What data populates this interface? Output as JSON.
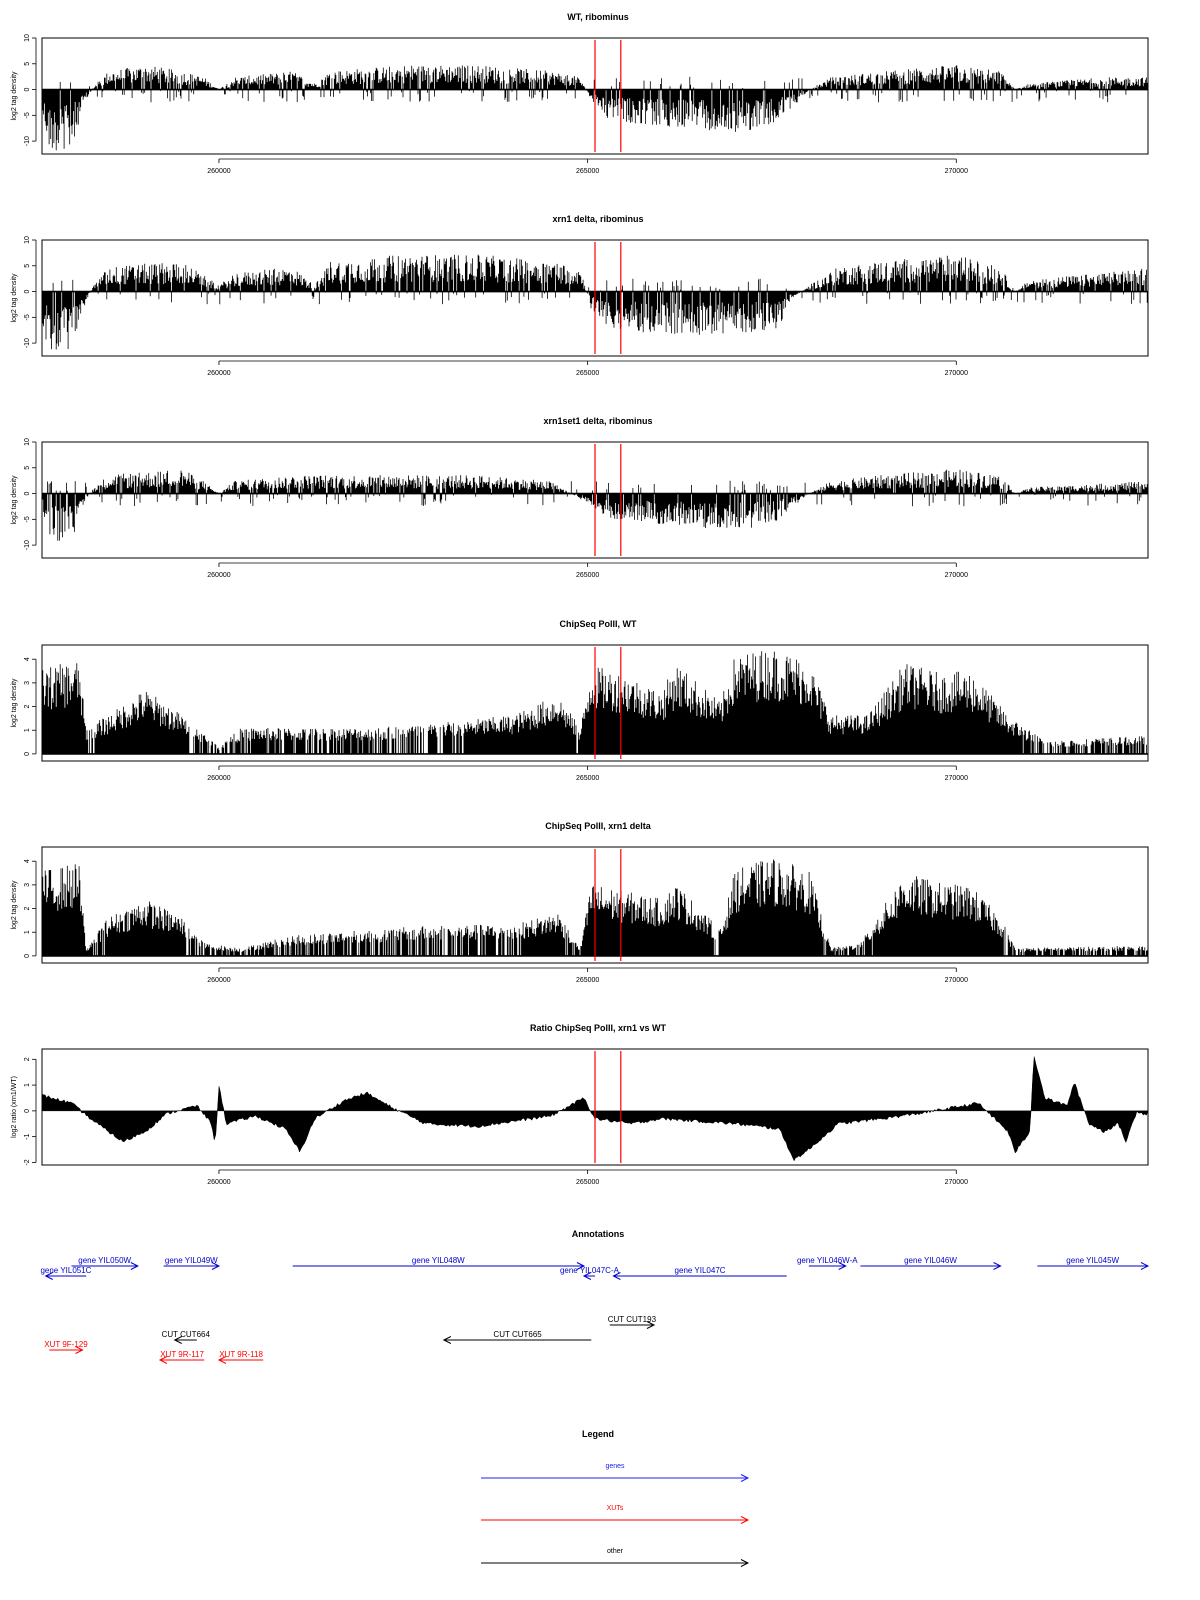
{
  "colors": {
    "signal": "#000000",
    "marker": "#ff0000",
    "gene": "#0000cc",
    "xut": "#ff0000",
    "other": "#000000",
    "legend_gene": "#2222ee"
  },
  "chart_data": [
    {
      "type": "area",
      "title": "WT, ribominus",
      "ylabel": "log2 tag density",
      "xlim": [
        257600,
        272600
      ],
      "ylim": [
        -12.5,
        10
      ],
      "yticks": [
        -10,
        -5,
        0,
        5,
        10
      ],
      "xticks": [
        260000,
        265000,
        270000
      ],
      "grid": false,
      "markers_x": [
        265100,
        265450
      ],
      "profile": [
        {
          "x": 257600,
          "y": -4
        },
        {
          "x": 257700,
          "y": -10
        },
        {
          "x": 258000,
          "y": -10
        },
        {
          "x": 258150,
          "y": -3
        },
        {
          "x": 258300,
          "y": 0.5
        },
        {
          "x": 258500,
          "y": 3
        },
        {
          "x": 259000,
          "y": 4
        },
        {
          "x": 259500,
          "y": 3
        },
        {
          "x": 259800,
          "y": 2
        },
        {
          "x": 260000,
          "y": 0
        },
        {
          "x": 260200,
          "y": 2
        },
        {
          "x": 261000,
          "y": 3
        },
        {
          "x": 261300,
          "y": 1
        },
        {
          "x": 261500,
          "y": 3
        },
        {
          "x": 262500,
          "y": 4
        },
        {
          "x": 263500,
          "y": 4
        },
        {
          "x": 264500,
          "y": 3
        },
        {
          "x": 264900,
          "y": 2
        },
        {
          "x": 265050,
          "y": -2
        },
        {
          "x": 265300,
          "y": -5
        },
        {
          "x": 266000,
          "y": -6
        },
        {
          "x": 267000,
          "y": -7
        },
        {
          "x": 267500,
          "y": -6
        },
        {
          "x": 267800,
          "y": -3
        },
        {
          "x": 268000,
          "y": 0
        },
        {
          "x": 268300,
          "y": 2
        },
        {
          "x": 269000,
          "y": 3
        },
        {
          "x": 270000,
          "y": 4
        },
        {
          "x": 270600,
          "y": 3
        },
        {
          "x": 270800,
          "y": 0
        },
        {
          "x": 271000,
          "y": 1
        },
        {
          "x": 272000,
          "y": 2
        },
        {
          "x": 272600,
          "y": 2
        }
      ]
    },
    {
      "type": "area",
      "title": "xrn1 delta, ribominus",
      "ylabel": "log2 tag density",
      "xlim": [
        257600,
        272600
      ],
      "ylim": [
        -12.5,
        10
      ],
      "yticks": [
        -10,
        -5,
        0,
        5,
        10
      ],
      "xticks": [
        260000,
        265000,
        270000
      ],
      "grid": false,
      "markers_x": [
        265100,
        265450
      ],
      "profile": [
        {
          "x": 257600,
          "y": -6
        },
        {
          "x": 257700,
          "y": -10
        },
        {
          "x": 258000,
          "y": -10
        },
        {
          "x": 258150,
          "y": -3
        },
        {
          "x": 258300,
          "y": 1
        },
        {
          "x": 258500,
          "y": 4
        },
        {
          "x": 259500,
          "y": 5
        },
        {
          "x": 260000,
          "y": 1
        },
        {
          "x": 260200,
          "y": 3
        },
        {
          "x": 261000,
          "y": 4
        },
        {
          "x": 261300,
          "y": 1
        },
        {
          "x": 261500,
          "y": 5
        },
        {
          "x": 262500,
          "y": 6
        },
        {
          "x": 263500,
          "y": 6
        },
        {
          "x": 264500,
          "y": 5
        },
        {
          "x": 264900,
          "y": 4
        },
        {
          "x": 265050,
          "y": -3
        },
        {
          "x": 265300,
          "y": -6
        },
        {
          "x": 266000,
          "y": -7
        },
        {
          "x": 267000,
          "y": -7
        },
        {
          "x": 267650,
          "y": -6
        },
        {
          "x": 267700,
          "y": -2
        },
        {
          "x": 268000,
          "y": 1
        },
        {
          "x": 268400,
          "y": 4
        },
        {
          "x": 269000,
          "y": 5
        },
        {
          "x": 270000,
          "y": 6
        },
        {
          "x": 270600,
          "y": 4
        },
        {
          "x": 270800,
          "y": 0
        },
        {
          "x": 271000,
          "y": 2
        },
        {
          "x": 272000,
          "y": 3
        },
        {
          "x": 272600,
          "y": 4
        }
      ]
    },
    {
      "type": "area",
      "title": "xrn1set1 delta, ribominus",
      "ylabel": "log2 tag density",
      "xlim": [
        257600,
        272600
      ],
      "ylim": [
        -12.5,
        10
      ],
      "yticks": [
        -10,
        -5,
        0,
        5,
        10
      ],
      "xticks": [
        260000,
        265000,
        270000
      ],
      "grid": false,
      "markers_x": [
        265100,
        265450
      ],
      "profile": [
        {
          "x": 257600,
          "y": -3
        },
        {
          "x": 257700,
          "y": -8
        },
        {
          "x": 258000,
          "y": -8
        },
        {
          "x": 258150,
          "y": -2
        },
        {
          "x": 258300,
          "y": 1
        },
        {
          "x": 258500,
          "y": 3
        },
        {
          "x": 259500,
          "y": 4
        },
        {
          "x": 259800,
          "y": 2
        },
        {
          "x": 260000,
          "y": 0
        },
        {
          "x": 260200,
          "y": 2
        },
        {
          "x": 261000,
          "y": 3
        },
        {
          "x": 262500,
          "y": 3
        },
        {
          "x": 263500,
          "y": 3
        },
        {
          "x": 264500,
          "y": 2
        },
        {
          "x": 265050,
          "y": -2
        },
        {
          "x": 265300,
          "y": -4
        },
        {
          "x": 266000,
          "y": -5
        },
        {
          "x": 267000,
          "y": -6
        },
        {
          "x": 267500,
          "y": -5
        },
        {
          "x": 267800,
          "y": -2
        },
        {
          "x": 268000,
          "y": 0
        },
        {
          "x": 268300,
          "y": 2
        },
        {
          "x": 269000,
          "y": 3
        },
        {
          "x": 270000,
          "y": 4
        },
        {
          "x": 270600,
          "y": 3
        },
        {
          "x": 270800,
          "y": 0
        },
        {
          "x": 271000,
          "y": 1
        },
        {
          "x": 272600,
          "y": 2
        }
      ]
    },
    {
      "type": "area",
      "title": "ChipSeq PolII, WT",
      "ylabel": "log2 tag density",
      "xlim": [
        257600,
        272600
      ],
      "ylim": [
        -0.3,
        4.6
      ],
      "yticks": [
        0,
        1,
        2,
        3,
        4
      ],
      "xticks": [
        260000,
        265000,
        270000
      ],
      "grid": false,
      "markers_x": [
        265100,
        265450
      ],
      "profile": [
        {
          "x": 257600,
          "y": 3.3
        },
        {
          "x": 258100,
          "y": 3.6
        },
        {
          "x": 258200,
          "y": 1
        },
        {
          "x": 258500,
          "y": 1.5
        },
        {
          "x": 259000,
          "y": 2.5
        },
        {
          "x": 259500,
          "y": 1.5
        },
        {
          "x": 260000,
          "y": 0.3
        },
        {
          "x": 260300,
          "y": 1
        },
        {
          "x": 262000,
          "y": 1
        },
        {
          "x": 263000,
          "y": 1.2
        },
        {
          "x": 264000,
          "y": 1.5
        },
        {
          "x": 264600,
          "y": 2.3
        },
        {
          "x": 264900,
          "y": 1
        },
        {
          "x": 265050,
          "y": 3.4
        },
        {
          "x": 265500,
          "y": 3.1
        },
        {
          "x": 266000,
          "y": 2.4
        },
        {
          "x": 266200,
          "y": 3.5
        },
        {
          "x": 266800,
          "y": 2
        },
        {
          "x": 267000,
          "y": 3.8
        },
        {
          "x": 267500,
          "y": 4.1
        },
        {
          "x": 268000,
          "y": 3.6
        },
        {
          "x": 268300,
          "y": 1.5
        },
        {
          "x": 268800,
          "y": 1.5
        },
        {
          "x": 269300,
          "y": 3.5
        },
        {
          "x": 269800,
          "y": 3.1
        },
        {
          "x": 270200,
          "y": 3.2
        },
        {
          "x": 270700,
          "y": 1.5
        },
        {
          "x": 271200,
          "y": 0.5
        },
        {
          "x": 272600,
          "y": 0.7
        }
      ]
    },
    {
      "type": "area",
      "title": "ChipSeq PolII, xrn1 delta",
      "ylabel": "log2 tag density",
      "xlim": [
        257600,
        272600
      ],
      "ylim": [
        -0.3,
        4.6
      ],
      "yticks": [
        0,
        1,
        2,
        3,
        4
      ],
      "xticks": [
        260000,
        265000,
        270000
      ],
      "grid": false,
      "markers_x": [
        265100,
        265450
      ],
      "profile": [
        {
          "x": 257600,
          "y": 3.3
        },
        {
          "x": 258100,
          "y": 3.6
        },
        {
          "x": 258200,
          "y": 0.3
        },
        {
          "x": 258500,
          "y": 1.5
        },
        {
          "x": 259000,
          "y": 2.2
        },
        {
          "x": 259500,
          "y": 1.5
        },
        {
          "x": 259800,
          "y": 0.5
        },
        {
          "x": 260300,
          "y": 0.3
        },
        {
          "x": 261000,
          "y": 0.8
        },
        {
          "x": 263000,
          "y": 1.2
        },
        {
          "x": 264000,
          "y": 1.2
        },
        {
          "x": 264600,
          "y": 1.7
        },
        {
          "x": 264900,
          "y": 0.3
        },
        {
          "x": 265050,
          "y": 2.8
        },
        {
          "x": 265500,
          "y": 2.5
        },
        {
          "x": 266000,
          "y": 2.2
        },
        {
          "x": 266200,
          "y": 2.8
        },
        {
          "x": 266800,
          "y": 1
        },
        {
          "x": 267000,
          "y": 3.3
        },
        {
          "x": 267500,
          "y": 3.8
        },
        {
          "x": 268000,
          "y": 3.3
        },
        {
          "x": 268300,
          "y": 0.3
        },
        {
          "x": 268700,
          "y": 0.5
        },
        {
          "x": 269300,
          "y": 3.2
        },
        {
          "x": 269800,
          "y": 2.8
        },
        {
          "x": 270200,
          "y": 2.7
        },
        {
          "x": 270600,
          "y": 1.5
        },
        {
          "x": 270800,
          "y": 0.3
        },
        {
          "x": 272600,
          "y": 0.4
        }
      ]
    },
    {
      "type": "area",
      "title": "Ratio ChipSeq PolII, xrn1 vs WT",
      "ylabel": "log2 ratio (xrn1/WT)",
      "xlim": [
        257600,
        272600
      ],
      "ylim": [
        -2.1,
        2.4
      ],
      "yticks": [
        -2,
        -1,
        0,
        1,
        2
      ],
      "xticks": [
        260000,
        265000,
        270000
      ],
      "grid": false,
      "markers_x": [
        265100,
        265450
      ],
      "profile": [
        {
          "x": 257600,
          "y": 0.6
        },
        {
          "x": 258000,
          "y": 0.3
        },
        {
          "x": 258300,
          "y": -0.4
        },
        {
          "x": 258700,
          "y": -1.2
        },
        {
          "x": 259000,
          "y": -0.8
        },
        {
          "x": 259300,
          "y": -0.1
        },
        {
          "x": 259700,
          "y": 0.2
        },
        {
          "x": 259900,
          "y": -0.5
        },
        {
          "x": 259950,
          "y": -1.3
        },
        {
          "x": 260000,
          "y": 1
        },
        {
          "x": 260100,
          "y": -0.5
        },
        {
          "x": 260500,
          "y": -0.2
        },
        {
          "x": 260900,
          "y": -0.7
        },
        {
          "x": 261100,
          "y": -1.6
        },
        {
          "x": 261300,
          "y": -0.3
        },
        {
          "x": 261700,
          "y": 0.4
        },
        {
          "x": 262000,
          "y": 0.7
        },
        {
          "x": 262300,
          "y": 0.2
        },
        {
          "x": 262800,
          "y": -0.5
        },
        {
          "x": 263500,
          "y": -0.6
        },
        {
          "x": 264000,
          "y": -0.4
        },
        {
          "x": 264500,
          "y": -0.2
        },
        {
          "x": 264950,
          "y": 0.5
        },
        {
          "x": 265100,
          "y": -0.3
        },
        {
          "x": 265600,
          "y": -0.5
        },
        {
          "x": 266000,
          "y": -0.3
        },
        {
          "x": 266500,
          "y": -0.4
        },
        {
          "x": 267000,
          "y": -0.5
        },
        {
          "x": 267600,
          "y": -0.7
        },
        {
          "x": 267800,
          "y": -1.9
        },
        {
          "x": 268000,
          "y": -1.5
        },
        {
          "x": 268400,
          "y": -0.5
        },
        {
          "x": 269000,
          "y": -0.3
        },
        {
          "x": 269500,
          "y": -0.1
        },
        {
          "x": 270300,
          "y": 0.3
        },
        {
          "x": 270700,
          "y": -0.8
        },
        {
          "x": 270800,
          "y": -1.6
        },
        {
          "x": 271000,
          "y": -0.8
        },
        {
          "x": 271050,
          "y": 2.2
        },
        {
          "x": 271200,
          "y": 0.5
        },
        {
          "x": 271500,
          "y": 0.2
        },
        {
          "x": 271600,
          "y": 1.1
        },
        {
          "x": 271800,
          "y": -0.5
        },
        {
          "x": 272000,
          "y": -0.8
        },
        {
          "x": 272200,
          "y": -0.5
        },
        {
          "x": 272300,
          "y": -1.2
        },
        {
          "x": 272450,
          "y": 0
        },
        {
          "x": 272600,
          "y": -0.2
        }
      ]
    }
  ],
  "annotations": {
    "title": "Annotations",
    "xlim": [
      257600,
      272600
    ],
    "features": [
      {
        "kind": "gene",
        "label": "gene YIL051C",
        "start": 258200,
        "end": 257650,
        "row": 2
      },
      {
        "kind": "gene",
        "label": "gene YIL050W",
        "start": 258000,
        "end": 258900,
        "row": 1
      },
      {
        "kind": "gene",
        "label": "gene YIL049W",
        "start": 259250,
        "end": 260000,
        "row": 1
      },
      {
        "kind": "gene",
        "label": "gene YIL048W",
        "start": 261000,
        "end": 264950,
        "row": 1
      },
      {
        "kind": "gene",
        "label": "gene YIL047C-A",
        "start": 265100,
        "end": 264950,
        "row": 2
      },
      {
        "kind": "gene",
        "label": "gene YIL047C",
        "start": 267700,
        "end": 265350,
        "row": 2
      },
      {
        "kind": "gene",
        "label": "gene YIL046W-A",
        "start": 268000,
        "end": 268500,
        "row": 1
      },
      {
        "kind": "gene",
        "label": "gene YIL046W",
        "start": 268700,
        "end": 270600,
        "row": 1
      },
      {
        "kind": "gene",
        "label": "gene YIL045W",
        "start": 271100,
        "end": 272600,
        "row": 1
      },
      {
        "kind": "other",
        "label": "CUT CUT193",
        "start": 265300,
        "end": 265900,
        "row": 3
      },
      {
        "kind": "other",
        "label": "CUT CUT665",
        "start": 265050,
        "end": 263050,
        "row": 4
      },
      {
        "kind": "other",
        "label": "CUT CUT664",
        "start": 259700,
        "end": 259400,
        "row": 4
      },
      {
        "kind": "xut",
        "label": "XUT 9F-129",
        "start": 257700,
        "end": 258150,
        "row": 5
      },
      {
        "kind": "xut",
        "label": "XUT 9R-117",
        "start": 259800,
        "end": 259200,
        "row": 6
      },
      {
        "kind": "xut",
        "label": "XUT 9R-118",
        "start": 260600,
        "end": 260000,
        "row": 6
      }
    ]
  },
  "legend": {
    "title": "Legend",
    "items": [
      {
        "kind": "gene",
        "label": "genes"
      },
      {
        "kind": "xut",
        "label": "XUTs"
      },
      {
        "kind": "other",
        "label": "other"
      }
    ]
  }
}
